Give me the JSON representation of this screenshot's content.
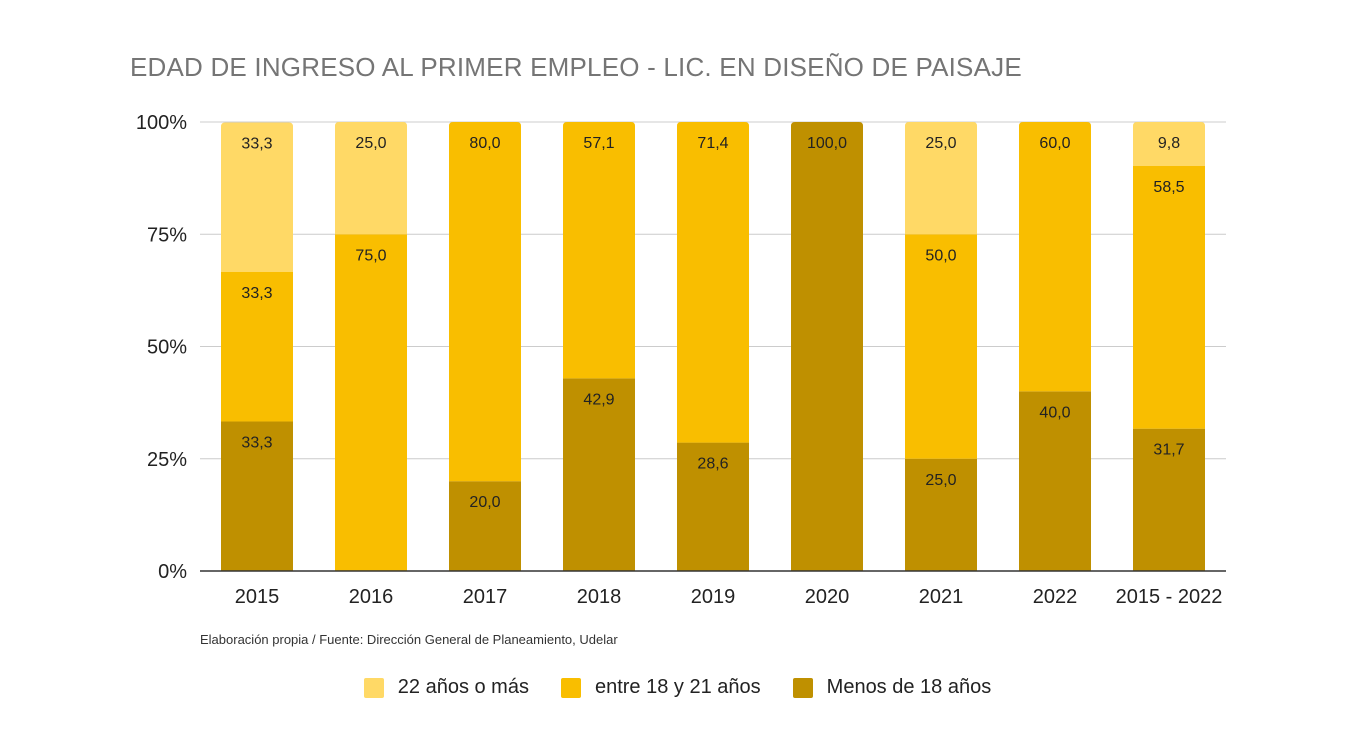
{
  "chart_data": {
    "type": "bar",
    "stacked": true,
    "title": "EDAD DE INGRESO AL PRIMER EMPLEO - LIC. EN DISEÑO DE PAISAJE",
    "source_note": "Elaboración propia / Fuente: Dirección General de Planeamiento, Udelar",
    "categories": [
      "2015",
      "2016",
      "2017",
      "2018",
      "2019",
      "2020",
      "2021",
      "2022",
      "2015 - 2022"
    ],
    "y_ticks": [
      "0%",
      "25%",
      "50%",
      "75%",
      "100%"
    ],
    "ylim": [
      0,
      100
    ],
    "grid": true,
    "legend_position": "bottom",
    "series": [
      {
        "name": "Menos de 18 años",
        "color": "#BF9000",
        "values": [
          33.3,
          0,
          20.0,
          42.9,
          28.6,
          100.0,
          25.0,
          40.0,
          31.7
        ],
        "labels": [
          "33,3",
          "",
          "20,0",
          "42,9",
          "28,6",
          "100,0",
          "25,0",
          "40,0",
          "31,7"
        ]
      },
      {
        "name": "entre 18 y 21 años",
        "color": "#F9BE00",
        "values": [
          33.3,
          75.0,
          80.0,
          57.1,
          71.4,
          0,
          50.0,
          60.0,
          58.5
        ],
        "labels": [
          "33,3",
          "75,0",
          "80,0",
          "57,1",
          "71,4",
          "",
          "50,0",
          "60,0",
          "58,5"
        ]
      },
      {
        "name": "22 años o más",
        "color": "#FFD966",
        "values": [
          33.3,
          25.0,
          0,
          0,
          0,
          0,
          25.0,
          0,
          9.8
        ],
        "labels": [
          "33,3",
          "25,0",
          "",
          "",
          "",
          "",
          "25,0",
          "",
          "9,8"
        ]
      }
    ],
    "legend_order": [
      2,
      1,
      0
    ]
  }
}
